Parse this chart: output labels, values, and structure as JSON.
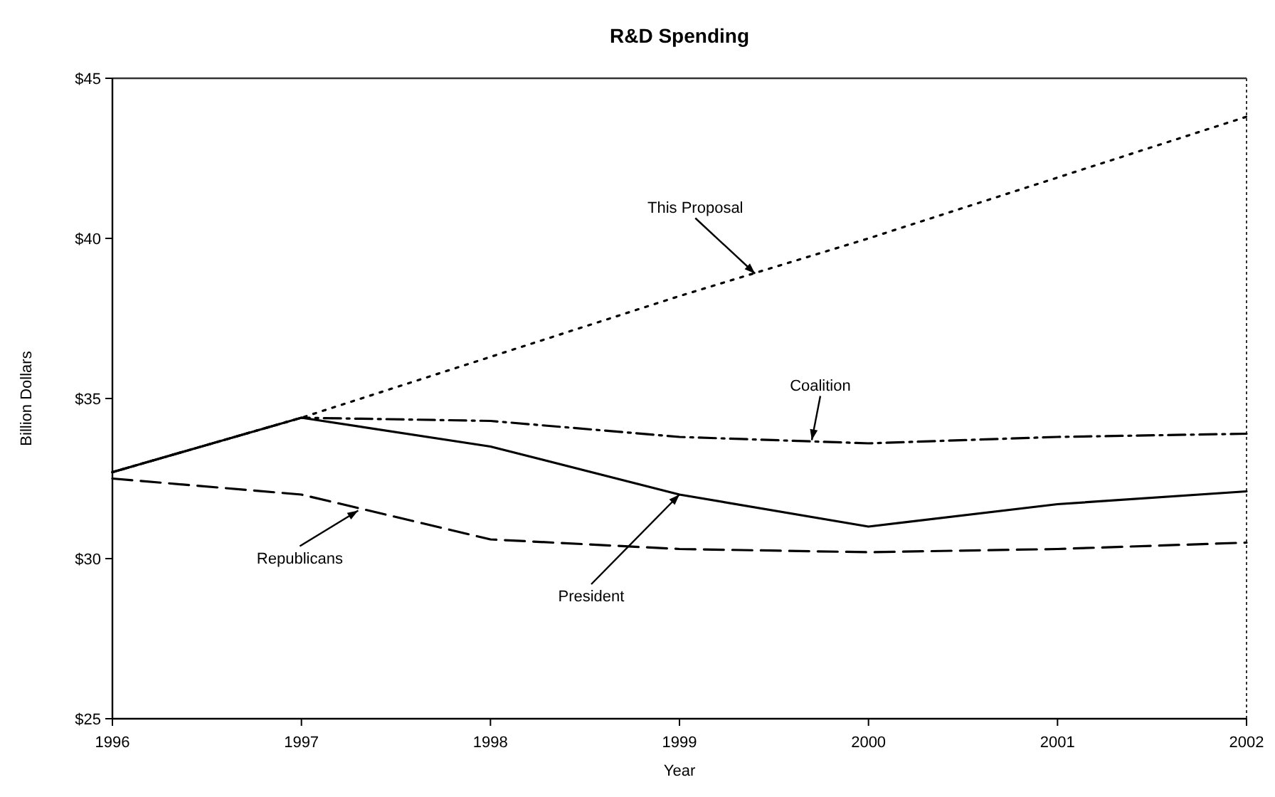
{
  "chart_data": {
    "type": "line",
    "title": "R&D Spending",
    "xlabel": "Year",
    "ylabel": "Billion Dollars",
    "x": [
      1996,
      1997,
      1998,
      1999,
      2000,
      2001,
      2002
    ],
    "xlim": [
      1996,
      2002
    ],
    "xticks": [
      1996,
      1997,
      1998,
      1999,
      2000,
      2001,
      2002
    ],
    "ylim": [
      25,
      45
    ],
    "yticks": [
      {
        "value": 25,
        "label": "$25"
      },
      {
        "value": 30,
        "label": "$30"
      },
      {
        "value": 35,
        "label": "$35"
      },
      {
        "value": 40,
        "label": "$40"
      },
      {
        "value": 45,
        "label": "$45"
      }
    ],
    "grid": false,
    "marker": "none",
    "series": [
      {
        "color": "#000000",
        "line_style": "dotted",
        "values": [
          32.7,
          34.4,
          36.3,
          38.2,
          40.0,
          41.9,
          43.8
        ]
      },
      {
        "color": "#000000",
        "line_style": "dashdot",
        "values": [
          32.7,
          34.4,
          34.3,
          33.8,
          33.6,
          33.8,
          33.9
        ]
      },
      {
        "color": "#000000",
        "line_style": "solid",
        "values": [
          32.7,
          34.4,
          33.5,
          32.0,
          31.0,
          31.7,
          32.1
        ]
      },
      {
        "color": "#000000",
        "line_style": "dashed",
        "values": [
          32.5,
          32.0,
          30.6,
          30.3,
          30.2,
          30.3,
          30.5
        ]
      }
    ],
    "annotations": [
      {
        "text": "This Proposal",
        "x": 1999.4,
        "y": 38.9
      },
      {
        "text": "Coalition",
        "x": 1999.7,
        "y": 33.7
      },
      {
        "text": "President",
        "x": 1999,
        "y": 32.0
      },
      {
        "text": "Republicans",
        "x": 1997.3,
        "y": 31.5
      }
    ]
  }
}
